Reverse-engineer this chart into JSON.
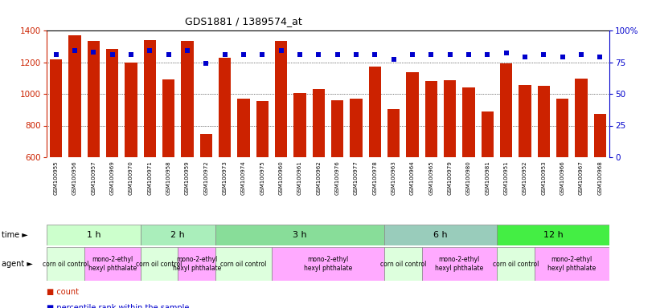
{
  "title": "GDS1881 / 1389574_at",
  "samples": [
    "GSM100955",
    "GSM100956",
    "GSM100957",
    "GSM100969",
    "GSM100970",
    "GSM100971",
    "GSM100958",
    "GSM100959",
    "GSM100972",
    "GSM100973",
    "GSM100974",
    "GSM100975",
    "GSM100960",
    "GSM100961",
    "GSM100962",
    "GSM100976",
    "GSM100977",
    "GSM100978",
    "GSM100963",
    "GSM100964",
    "GSM100965",
    "GSM100979",
    "GSM100980",
    "GSM100981",
    "GSM100951",
    "GSM100952",
    "GSM100953",
    "GSM100966",
    "GSM100967",
    "GSM100968"
  ],
  "counts": [
    1220,
    1370,
    1335,
    1285,
    1200,
    1340,
    1090,
    1335,
    745,
    1230,
    970,
    955,
    1335,
    1005,
    1030,
    960,
    970,
    1170,
    905,
    1135,
    1080,
    1085,
    1040,
    890,
    1190,
    1055,
    1050,
    970,
    1095,
    875
  ],
  "percentiles": [
    81,
    84,
    83,
    81,
    81,
    84,
    81,
    84,
    74,
    81,
    81,
    81,
    84,
    81,
    81,
    81,
    81,
    81,
    77,
    81,
    81,
    81,
    81,
    81,
    82,
    79,
    81,
    79,
    81,
    79
  ],
  "ylim_left": [
    600,
    1400
  ],
  "ylim_right": [
    0,
    100
  ],
  "yticks_left": [
    600,
    800,
    1000,
    1200,
    1400
  ],
  "yticks_right": [
    0,
    25,
    50,
    75,
    100
  ],
  "bar_color": "#cc2200",
  "dot_color": "#0000cc",
  "time_groups": [
    {
      "label": "1 h",
      "start": 0,
      "end": 5,
      "color": "#ccffcc"
    },
    {
      "label": "2 h",
      "start": 5,
      "end": 9,
      "color": "#aaeebb"
    },
    {
      "label": "3 h",
      "start": 9,
      "end": 18,
      "color": "#88dd99"
    },
    {
      "label": "6 h",
      "start": 18,
      "end": 24,
      "color": "#99ccbb"
    },
    {
      "label": "12 h",
      "start": 24,
      "end": 30,
      "color": "#44ee44"
    }
  ],
  "agent_groups": [
    {
      "label": "corn oil control",
      "start": 0,
      "end": 2,
      "color": "#ddffdd"
    },
    {
      "label": "mono-2-ethyl\nhexyl phthalate",
      "start": 2,
      "end": 5,
      "color": "#ffaaff"
    },
    {
      "label": "corn oil control",
      "start": 5,
      "end": 7,
      "color": "#ddffdd"
    },
    {
      "label": "mono-2-ethyl\nhexyl phthalate",
      "start": 7,
      "end": 9,
      "color": "#ffaaff"
    },
    {
      "label": "corn oil control",
      "start": 9,
      "end": 12,
      "color": "#ddffdd"
    },
    {
      "label": "mono-2-ethyl\nhexyl phthalate",
      "start": 12,
      "end": 18,
      "color": "#ffaaff"
    },
    {
      "label": "corn oil control",
      "start": 18,
      "end": 20,
      "color": "#ddffdd"
    },
    {
      "label": "mono-2-ethyl\nhexyl phthalate",
      "start": 20,
      "end": 24,
      "color": "#ffaaff"
    },
    {
      "label": "corn oil control",
      "start": 24,
      "end": 26,
      "color": "#ddffdd"
    },
    {
      "label": "mono-2-ethyl\nhexyl phthalate",
      "start": 26,
      "end": 30,
      "color": "#ffaaff"
    }
  ],
  "legend_count_color": "#cc2200",
  "legend_pct_color": "#0000cc",
  "bg_color": "#ffffff",
  "left_axis_color": "#cc2200",
  "right_axis_color": "#0000cc",
  "sample_bg_color": "#dddddd",
  "n_samples": 30
}
